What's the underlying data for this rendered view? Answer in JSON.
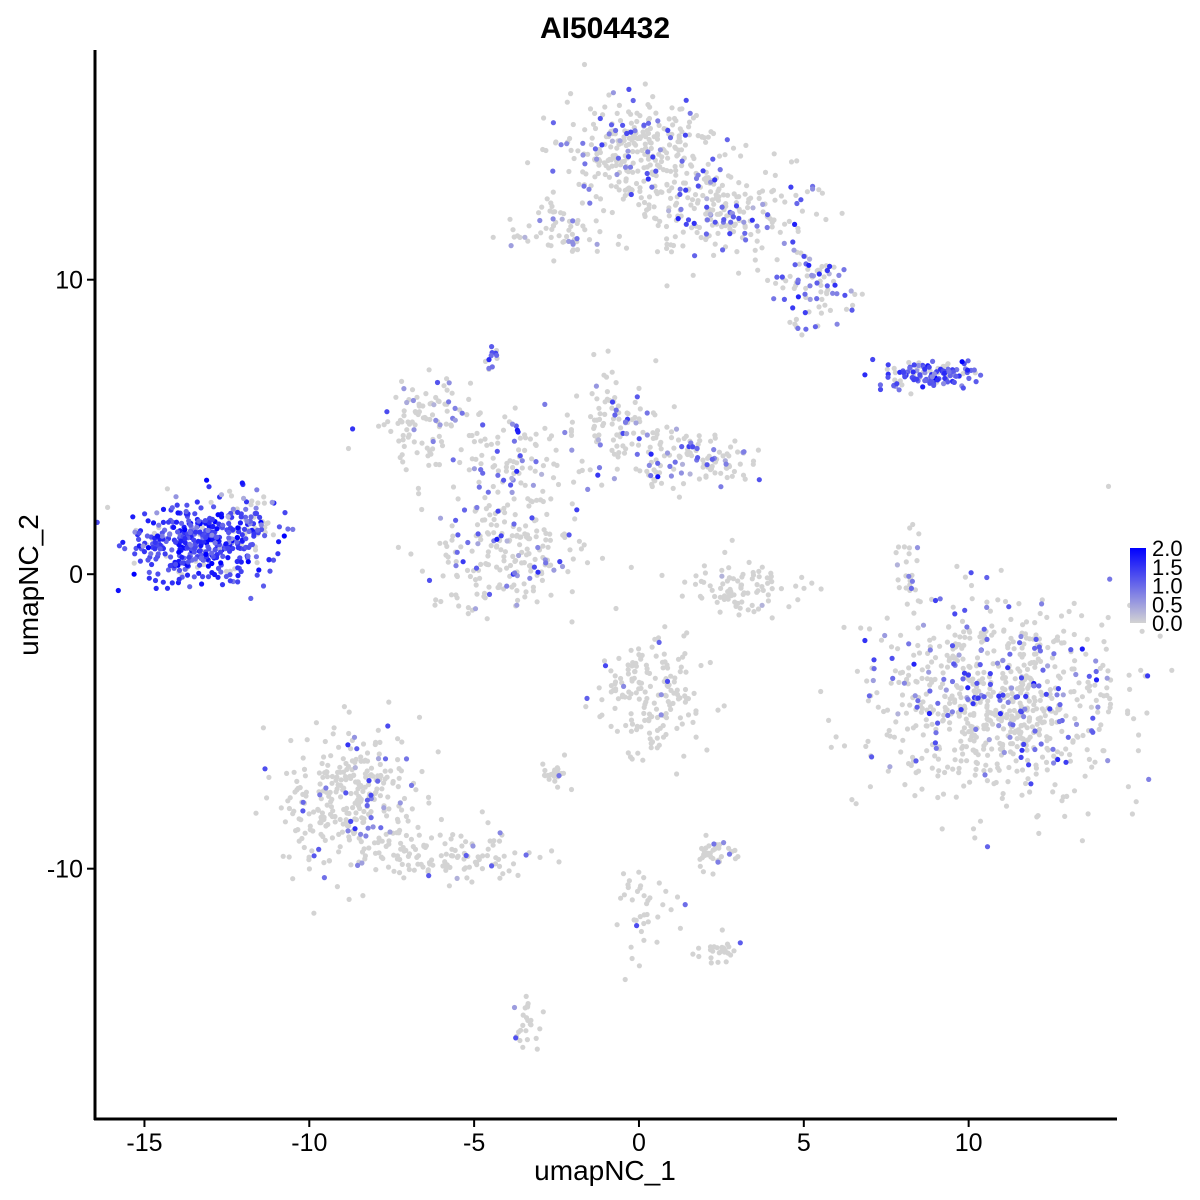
{
  "chart_data": {
    "type": "scatter",
    "title": "AI504432",
    "xlabel": "umapNC_1",
    "ylabel": "umapNC_2",
    "xlim": [
      -16.5,
      14.5
    ],
    "ylim": [
      -18.5,
      17.8
    ],
    "xticks": [
      -15,
      -10,
      -5,
      0,
      5,
      10
    ],
    "xtick_labels": [
      "-15",
      "-10",
      "-5",
      "0",
      "5",
      "10"
    ],
    "yticks": [
      10,
      0,
      -10
    ],
    "ytick_labels": [
      "10",
      "0",
      "-10"
    ],
    "grid": false,
    "color_scale": {
      "low_color": "#d3d3d3",
      "high_color": "#0000ff",
      "min": 0.0,
      "max": 2.0,
      "legend_position": "right",
      "ticks": [
        2.0,
        1.5,
        1.0,
        0.5,
        0.0
      ],
      "tick_labels": [
        "2.0",
        "1.5",
        "1.0",
        "0.5",
        "0.0"
      ]
    },
    "clusters": [
      {
        "name": "c1",
        "cx": -13.3,
        "cy": 1.1,
        "sx": 1.1,
        "sy": 0.65,
        "n": 420,
        "expr_frac": 0.9,
        "expr_mean": 1.4
      },
      {
        "name": "c2",
        "cx": -11.8,
        "cy": 1.9,
        "sx": 0.45,
        "sy": 0.5,
        "n": 50,
        "expr_frac": 0.5,
        "expr_mean": 0.9
      },
      {
        "name": "c3",
        "cx": 0.0,
        "cy": 14.3,
        "sx": 1.3,
        "sy": 0.9,
        "n": 320,
        "expr_frac": 0.15,
        "expr_mean": 0.9
      },
      {
        "name": "c4",
        "cx": 2.5,
        "cy": 12.2,
        "sx": 1.4,
        "sy": 0.8,
        "n": 220,
        "expr_frac": 0.25,
        "expr_mean": 1.0
      },
      {
        "name": "c5",
        "cx": 5.2,
        "cy": 9.8,
        "sx": 0.6,
        "sy": 0.7,
        "n": 90,
        "expr_frac": 0.45,
        "expr_mean": 1.0
      },
      {
        "name": "c6",
        "cx": -2.3,
        "cy": 11.6,
        "sx": 0.8,
        "sy": 0.4,
        "n": 60,
        "expr_frac": 0.2,
        "expr_mean": 0.8
      },
      {
        "name": "c7",
        "cx": 8.8,
        "cy": 6.8,
        "sx": 0.9,
        "sy": 0.25,
        "n": 130,
        "expr_frac": 0.7,
        "expr_mean": 1.2
      },
      {
        "name": "c8",
        "cx": -6.3,
        "cy": 5.2,
        "sx": 0.9,
        "sy": 0.7,
        "n": 110,
        "expr_frac": 0.15,
        "expr_mean": 0.8
      },
      {
        "name": "c9",
        "cx": -3.8,
        "cy": 3.8,
        "sx": 1.0,
        "sy": 0.9,
        "n": 100,
        "expr_frac": 0.3,
        "expr_mean": 0.9
      },
      {
        "name": "c10",
        "cx": -4.2,
        "cy": 0.8,
        "sx": 1.2,
        "sy": 1.0,
        "n": 220,
        "expr_frac": 0.2,
        "expr_mean": 0.9
      },
      {
        "name": "c11",
        "cx": -0.6,
        "cy": 5.0,
        "sx": 0.7,
        "sy": 1.0,
        "n": 110,
        "expr_frac": 0.2,
        "expr_mean": 0.9
      },
      {
        "name": "c12",
        "cx": 1.8,
        "cy": 3.9,
        "sx": 0.8,
        "sy": 0.5,
        "n": 110,
        "expr_frac": 0.25,
        "expr_mean": 0.9
      },
      {
        "name": "c13",
        "cx": 3.2,
        "cy": -0.5,
        "sx": 0.9,
        "sy": 0.5,
        "n": 90,
        "expr_frac": 0.03,
        "expr_mean": 0.6
      },
      {
        "name": "c14",
        "cx": 10.8,
        "cy": -4.3,
        "sx": 1.8,
        "sy": 1.7,
        "n": 800,
        "expr_frac": 0.18,
        "expr_mean": 1.0
      },
      {
        "name": "c15",
        "cx": 0.3,
        "cy": -4.2,
        "sx": 0.8,
        "sy": 1.0,
        "n": 170,
        "expr_frac": 0.04,
        "expr_mean": 0.8
      },
      {
        "name": "c16",
        "cx": -8.7,
        "cy": -7.6,
        "sx": 1.1,
        "sy": 1.3,
        "n": 330,
        "expr_frac": 0.08,
        "expr_mean": 0.9
      },
      {
        "name": "c17",
        "cx": -5.8,
        "cy": -9.6,
        "sx": 1.2,
        "sy": 0.4,
        "n": 110,
        "expr_frac": 0.04,
        "expr_mean": 0.8
      },
      {
        "name": "c18",
        "cx": -2.5,
        "cy": -6.8,
        "sx": 0.2,
        "sy": 0.2,
        "n": 25,
        "expr_frac": 0.02,
        "expr_mean": 0.6
      },
      {
        "name": "c19",
        "cx": 2.3,
        "cy": -9.5,
        "sx": 0.4,
        "sy": 0.3,
        "n": 35,
        "expr_frac": 0.02,
        "expr_mean": 0.6
      },
      {
        "name": "c20",
        "cx": 2.4,
        "cy": -12.8,
        "sx": 0.35,
        "sy": 0.2,
        "n": 25,
        "expr_frac": 0.02,
        "expr_mean": 0.6
      },
      {
        "name": "c21",
        "cx": -3.4,
        "cy": -15.3,
        "sx": 0.2,
        "sy": 0.5,
        "n": 25,
        "expr_frac": 0.05,
        "expr_mean": 0.8
      },
      {
        "name": "c22",
        "cx": 0.2,
        "cy": -11.3,
        "sx": 0.5,
        "sy": 1.0,
        "n": 40,
        "expr_frac": 0.04,
        "expr_mean": 0.9
      },
      {
        "name": "c23",
        "cx": -4.5,
        "cy": 7.4,
        "sx": 0.15,
        "sy": 0.3,
        "n": 12,
        "expr_frac": 0.6,
        "expr_mean": 1.0
      },
      {
        "name": "c24",
        "cx": 8.2,
        "cy": 0.2,
        "sx": 0.2,
        "sy": 0.8,
        "n": 25,
        "expr_frac": 0.1,
        "expr_mean": 0.8
      }
    ]
  }
}
